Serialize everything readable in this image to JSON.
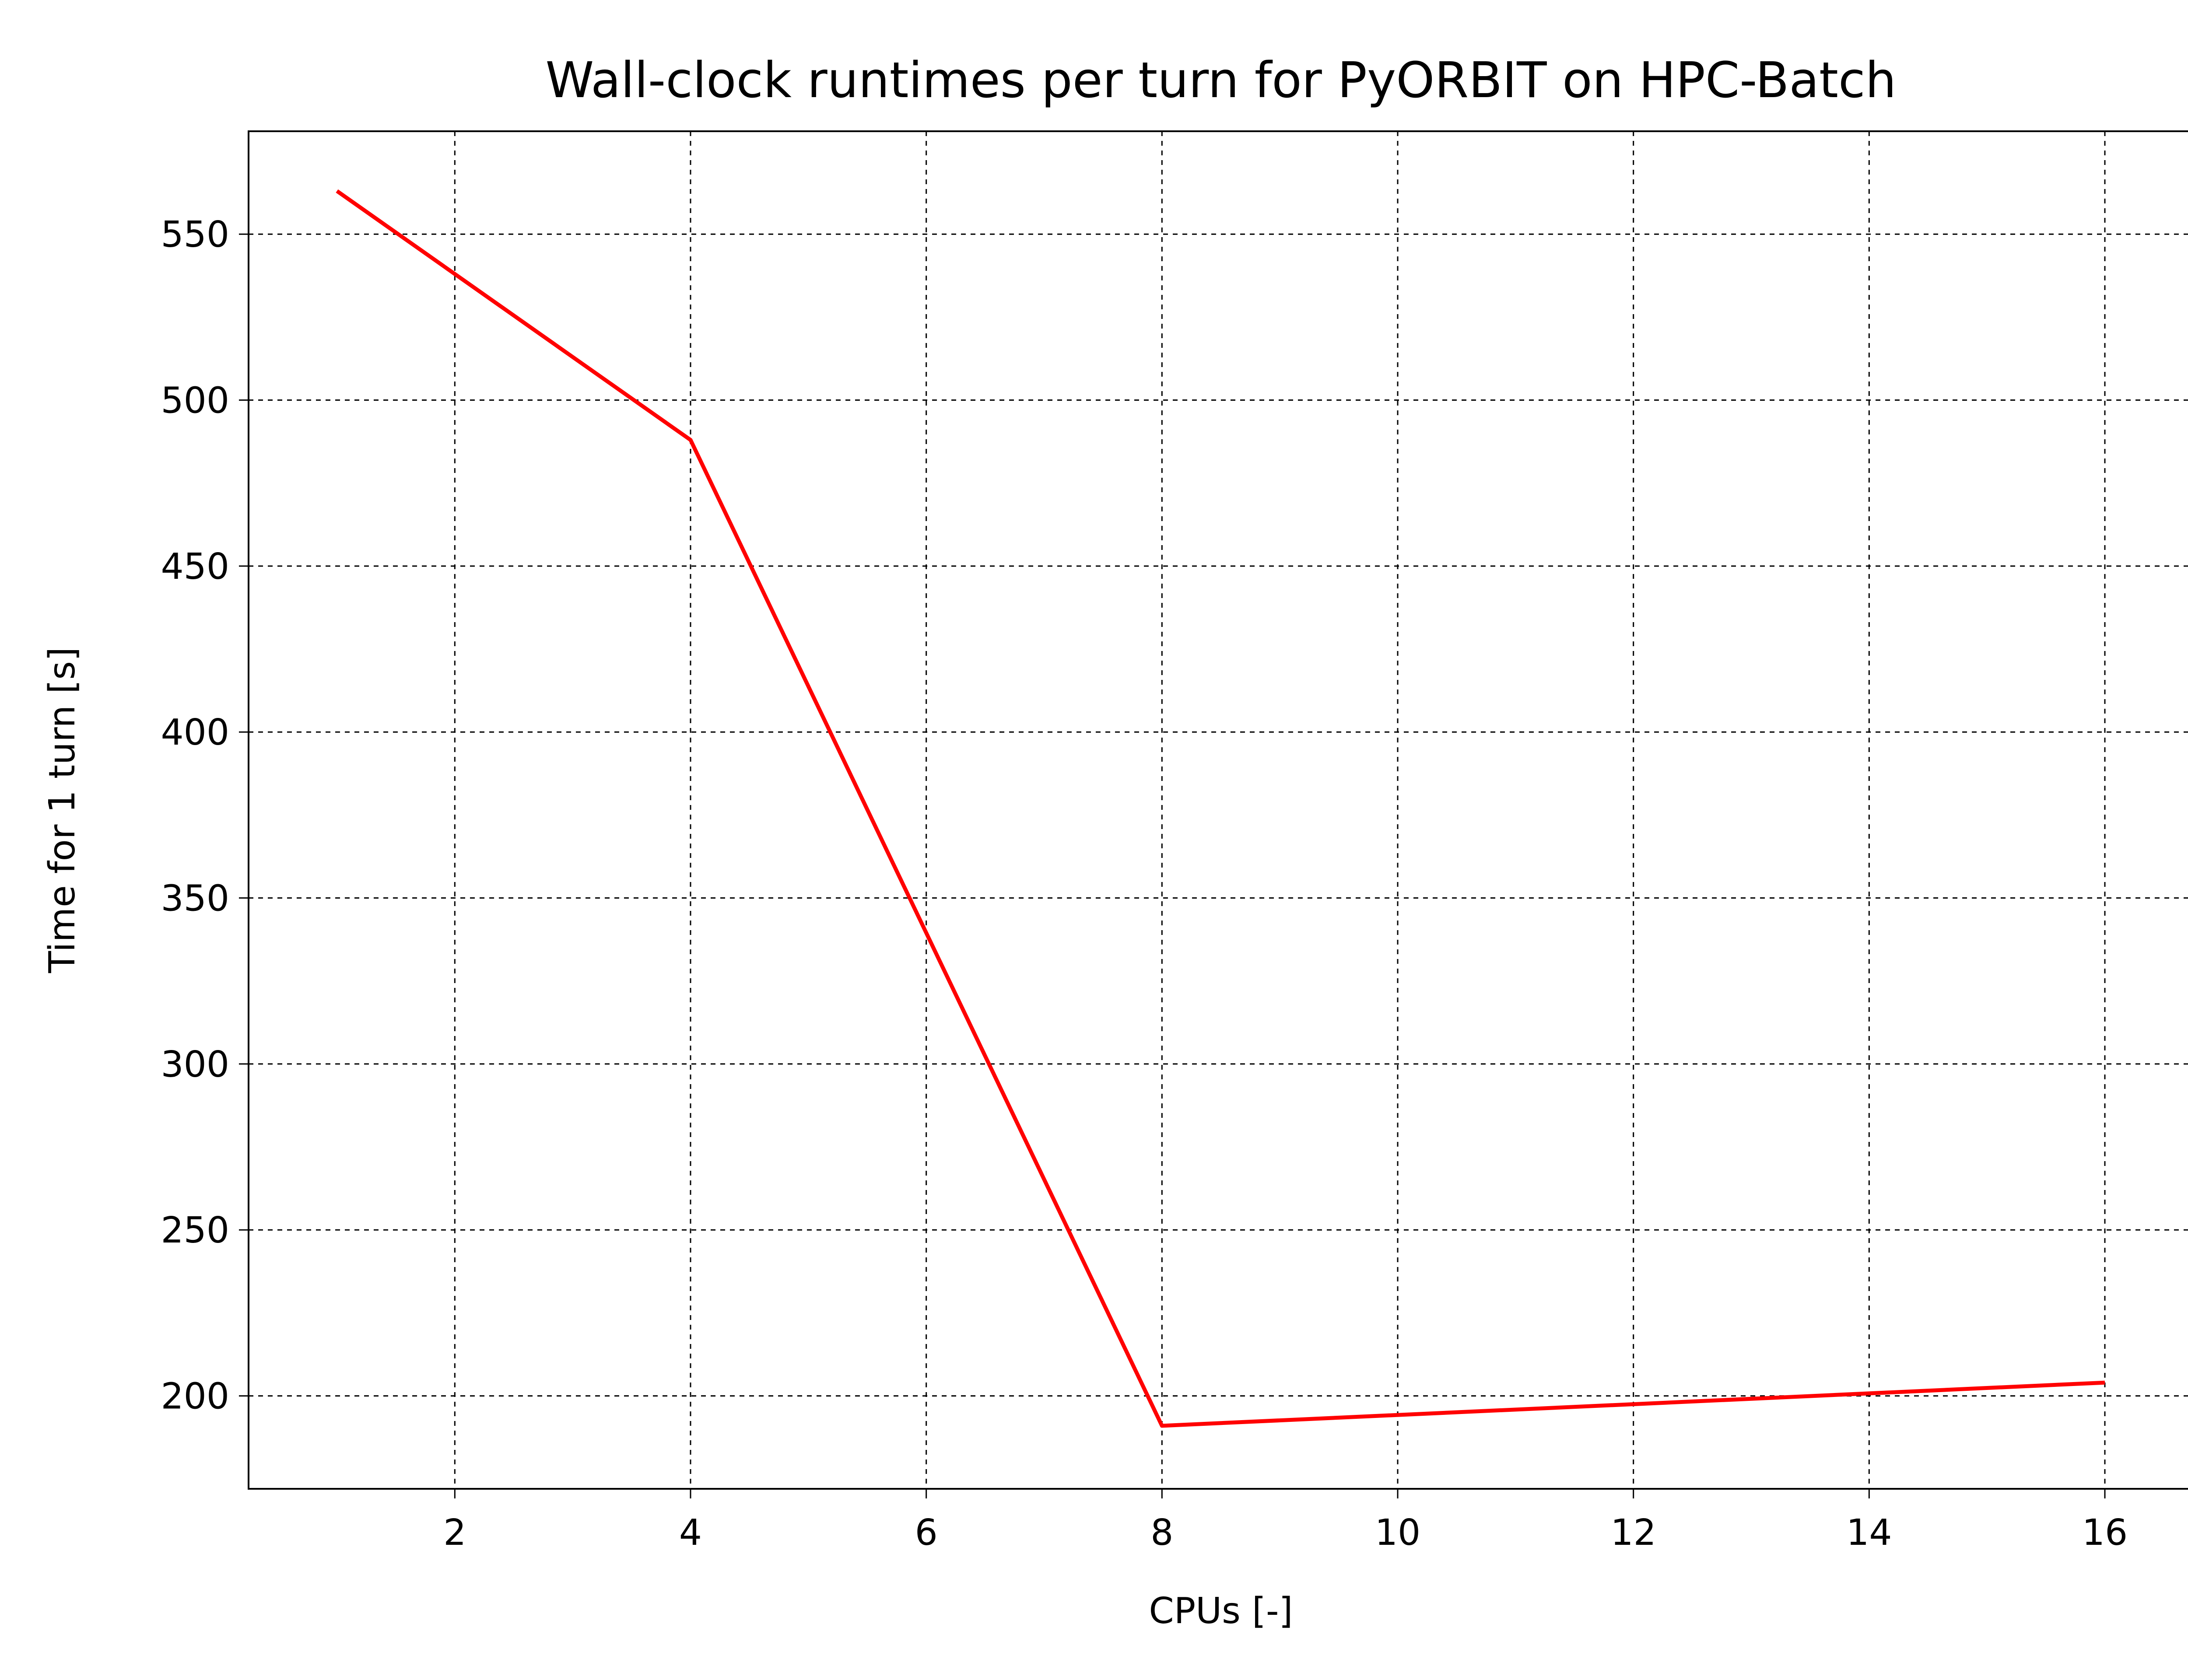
{
  "chart_data": {
    "type": "line",
    "title": "Wall-clock runtimes per turn for PyORBIT on HPC-Batch",
    "xlabel": "CPUs [-]",
    "ylabel": "Time for 1 turn [s]",
    "x": [
      1,
      4,
      8,
      16
    ],
    "series": [
      {
        "values": [
          563,
          488,
          191,
          204
        ],
        "color": "#ff0000"
      }
    ],
    "xlim": [
      0.25,
      16.75
    ],
    "ylim": [
      172,
      581
    ],
    "xticks": [
      2,
      4,
      6,
      8,
      10,
      12,
      14,
      16
    ],
    "yticks": [
      200,
      250,
      300,
      350,
      400,
      450,
      500,
      550
    ],
    "grid": true,
    "grid_style": "dashed"
  }
}
